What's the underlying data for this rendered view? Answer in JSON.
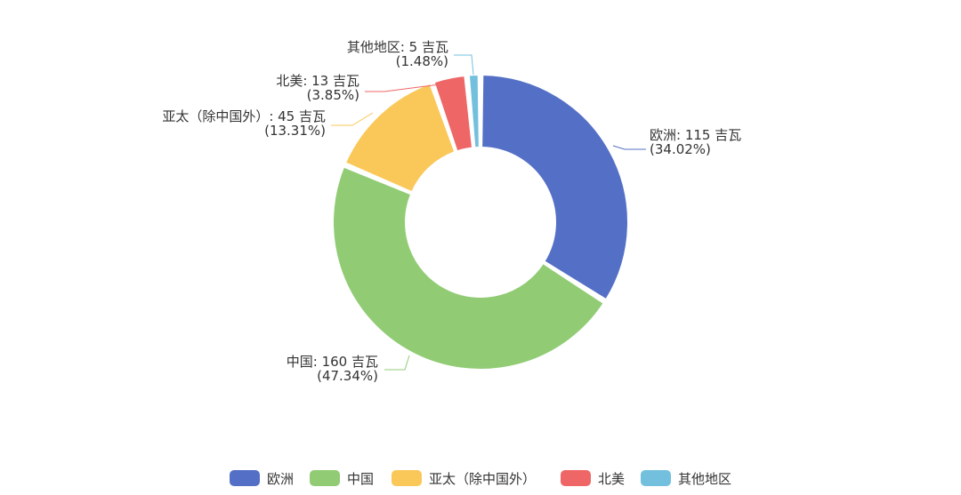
{
  "chart_data": {
    "type": "pie",
    "variant": "donut",
    "unit": "吉瓦",
    "slices": [
      {
        "name": "欧洲",
        "value": 115,
        "percent": "34.02%",
        "color": "#5470c6",
        "label_line1": "欧洲: 115 吉瓦",
        "label_line2": "(34.02%)"
      },
      {
        "name": "中国",
        "value": 160,
        "percent": "47.34%",
        "color": "#91cc75",
        "label_line1": "中国: 160 吉瓦",
        "label_line2": "(47.34%)"
      },
      {
        "name": "亚太（除中国外）",
        "value": 45,
        "percent": "13.31%",
        "color": "#fac858",
        "label_line1": "亚太（除中国外）: 45 吉瓦",
        "label_line2": "(13.31%)"
      },
      {
        "name": "北美",
        "value": 13,
        "percent": "3.85%",
        "color": "#ee6666",
        "label_line1": "北美: 13 吉瓦",
        "label_line2": "(3.85%)"
      },
      {
        "name": "其他地区",
        "value": 5,
        "percent": "1.48%",
        "color": "#73c0de",
        "label_line1": "其他地区: 5 吉瓦",
        "label_line2": "(1.48%)"
      }
    ],
    "legend": {
      "position": "bottom-center",
      "items": [
        "欧洲",
        "中国",
        "亚太（除中国外）",
        "北美",
        "其他地区"
      ]
    }
  }
}
